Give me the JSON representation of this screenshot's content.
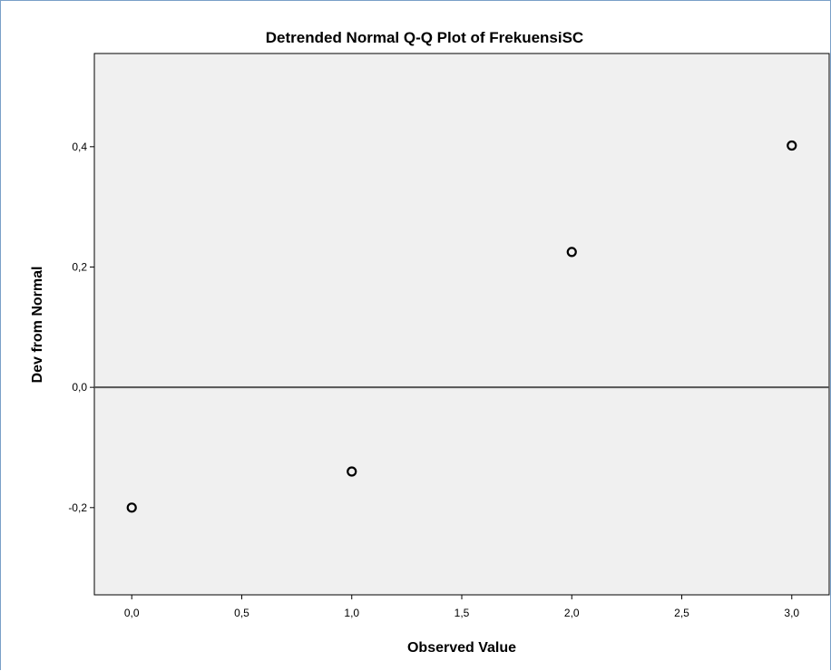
{
  "chart_data": {
    "type": "scatter",
    "title": "Detrended Normal Q-Q Plot of FrekuensiSC",
    "xlabel": "Observed Value",
    "ylabel": "Dev from Normal",
    "xlim": [
      -0.17,
      3.17
    ],
    "ylim": [
      -0.345,
      0.555
    ],
    "xticks": [
      0.0,
      0.5,
      1.0,
      1.5,
      2.0,
      2.5,
      3.0
    ],
    "xtick_labels": [
      "0,0",
      "0,5",
      "1,0",
      "1,5",
      "2,0",
      "2,5",
      "3,0"
    ],
    "yticks": [
      -0.2,
      0.0,
      0.2,
      0.4
    ],
    "ytick_labels": [
      "-0,2",
      "0,0",
      "0,2",
      "0,4"
    ],
    "reference_line_y": 0.0,
    "points": [
      {
        "x": 0,
        "y": -0.2
      },
      {
        "x": 1,
        "y": -0.14
      },
      {
        "x": 2,
        "y": 0.225
      },
      {
        "x": 3,
        "y": 0.402
      }
    ],
    "grid": false,
    "legend": "none",
    "plot_background": "#f0f0f0",
    "marker_color": "#000000",
    "reference_line_color": "#555555"
  }
}
